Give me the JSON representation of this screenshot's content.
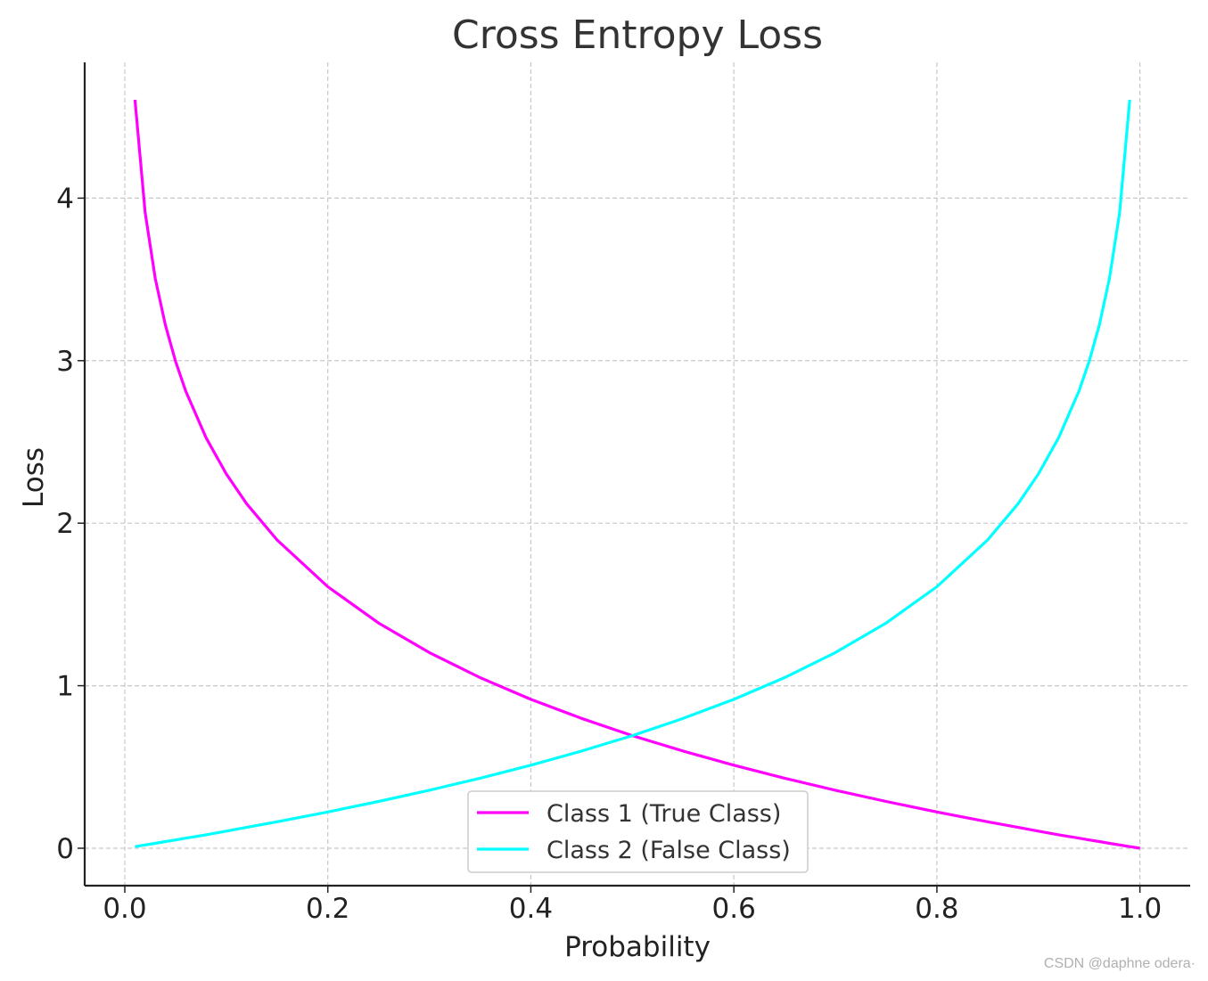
{
  "chart_data": {
    "type": "line",
    "title": "Cross Entropy Loss",
    "xlabel": "Probability",
    "ylabel": "Loss",
    "xlim": [
      -0.0395,
      1.0495
    ],
    "ylim": [
      -0.2303,
      4.8354
    ],
    "xticks": [
      0.0,
      0.2,
      0.4,
      0.6,
      0.8,
      1.0
    ],
    "xtick_labels": [
      "0.0",
      "0.2",
      "0.4",
      "0.6",
      "0.8",
      "1.0"
    ],
    "yticks": [
      0,
      1,
      2,
      3,
      4
    ],
    "ytick_labels": [
      "0",
      "1",
      "2",
      "3",
      "4"
    ],
    "grid": true,
    "legend_position": "bottom-center",
    "x": [
      0.01,
      0.02,
      0.03,
      0.04,
      0.05,
      0.06,
      0.08,
      0.1,
      0.12,
      0.15,
      0.2,
      0.25,
      0.3,
      0.35,
      0.4,
      0.45,
      0.5,
      0.55,
      0.6,
      0.65,
      0.7,
      0.75,
      0.8,
      0.85,
      0.88,
      0.9,
      0.92,
      0.94,
      0.95,
      0.96,
      0.97,
      0.98,
      0.99,
      1.0
    ],
    "series": [
      {
        "name": "Class 1 (True Class)",
        "color": "#ff00ff",
        "values": [
          4.605,
          3.912,
          3.507,
          3.219,
          2.996,
          2.813,
          2.526,
          2.303,
          2.12,
          1.897,
          1.609,
          1.386,
          1.204,
          1.05,
          0.916,
          0.799,
          0.693,
          0.598,
          0.511,
          0.431,
          0.357,
          0.288,
          0.223,
          0.163,
          0.128,
          0.105,
          0.083,
          0.062,
          0.051,
          0.041,
          0.03,
          0.02,
          0.01,
          0.0
        ]
      },
      {
        "name": "Class 2 (False Class)",
        "color": "#00ffff",
        "values": [
          0.01,
          0.02,
          0.03,
          0.041,
          0.051,
          0.062,
          0.083,
          0.105,
          0.128,
          0.163,
          0.223,
          0.288,
          0.357,
          0.431,
          0.511,
          0.598,
          0.693,
          0.799,
          0.916,
          1.05,
          1.204,
          1.386,
          1.609,
          1.897,
          2.12,
          2.303,
          2.526,
          2.813,
          2.996,
          3.219,
          3.507,
          3.912,
          4.605,
          null
        ]
      }
    ]
  },
  "watermark": "CSDN @daphne odera·"
}
